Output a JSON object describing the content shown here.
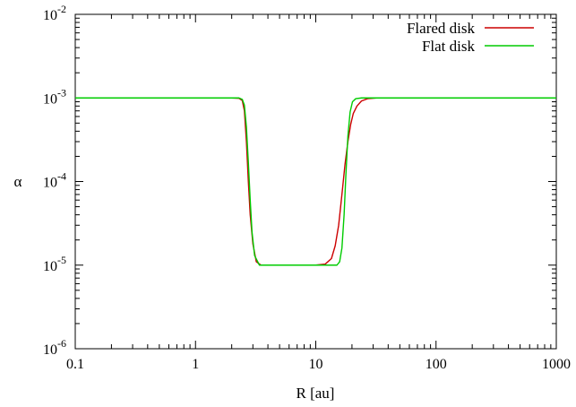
{
  "chart_data": {
    "type": "line",
    "title": "",
    "xlabel": "R [au]",
    "ylabel": "α",
    "x_scale": "log",
    "y_scale": "log",
    "xlim": [
      0.1,
      1000
    ],
    "ylim": [
      1e-06,
      0.01
    ],
    "grid": false,
    "legend_position": "top-right",
    "x_ticks": [
      {
        "value": 0.1,
        "label": "0.1"
      },
      {
        "value": 1,
        "label": "1"
      },
      {
        "value": 10,
        "label": "10"
      },
      {
        "value": 100,
        "label": "100"
      },
      {
        "value": 1000,
        "label": "1000"
      }
    ],
    "y_ticks": [
      {
        "value": 1e-06,
        "base": "10",
        "exp": "-6"
      },
      {
        "value": 1e-05,
        "base": "10",
        "exp": "-5"
      },
      {
        "value": 0.0001,
        "base": "10",
        "exp": "-4"
      },
      {
        "value": 0.001,
        "base": "10",
        "exp": "-3"
      },
      {
        "value": 0.01,
        "base": "10",
        "exp": "-2"
      }
    ],
    "series": [
      {
        "name": "Flared disk",
        "color": "#cc0000",
        "points": [
          [
            0.1,
            0.001
          ],
          [
            2.0,
            0.001
          ],
          [
            2.3,
            0.00099
          ],
          [
            2.45,
            0.00093
          ],
          [
            2.55,
            0.0007
          ],
          [
            2.65,
            0.0003
          ],
          [
            2.75,
            0.0001
          ],
          [
            2.85,
            4e-05
          ],
          [
            3.0,
            1.8e-05
          ],
          [
            3.2,
            1.1e-05
          ],
          [
            3.5,
            1e-05
          ],
          [
            10,
            1e-05
          ],
          [
            12,
            1.03e-05
          ],
          [
            13.5,
            1.2e-05
          ],
          [
            14.5,
            1.7e-05
          ],
          [
            15.5,
            3e-05
          ],
          [
            16.5,
            7e-05
          ],
          [
            17.5,
            0.00016
          ],
          [
            18.5,
            0.0003
          ],
          [
            19.5,
            0.00048
          ],
          [
            20.5,
            0.00065
          ],
          [
            22,
            0.0008
          ],
          [
            24,
            0.00092
          ],
          [
            27,
            0.00098
          ],
          [
            32,
            0.001
          ],
          [
            1000,
            0.001
          ]
        ]
      },
      {
        "name": "Flat disk",
        "color": "#00cc00",
        "points": [
          [
            0.1,
            0.001
          ],
          [
            2.3,
            0.001
          ],
          [
            2.45,
            0.00096
          ],
          [
            2.55,
            0.00082
          ],
          [
            2.65,
            0.00045
          ],
          [
            2.75,
            0.00017
          ],
          [
            2.85,
            6e-05
          ],
          [
            2.95,
            2.5e-05
          ],
          [
            3.1,
            1.3e-05
          ],
          [
            3.4,
            1e-05
          ],
          [
            15,
            1e-05
          ],
          [
            15.8,
            1.1e-05
          ],
          [
            16.5,
            1.6e-05
          ],
          [
            17.2,
            4e-05
          ],
          [
            17.8,
            0.00012
          ],
          [
            18.5,
            0.00035
          ],
          [
            19.3,
            0.00068
          ],
          [
            20.2,
            0.0009
          ],
          [
            21.5,
            0.00098
          ],
          [
            24,
            0.001
          ],
          [
            1000,
            0.001
          ]
        ]
      }
    ]
  }
}
